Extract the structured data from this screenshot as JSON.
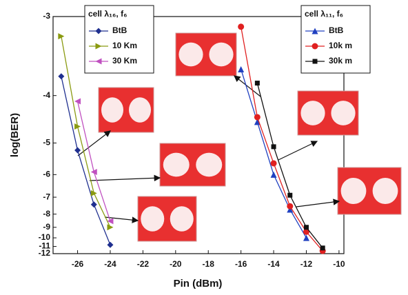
{
  "chart_data": {
    "type": "line",
    "xlabel": "Pin (dBm)",
    "ylabel": "log(BER)",
    "yscale": "reciprocal",
    "xlim": [
      -27.5,
      -9.7
    ],
    "xticks": [
      -26,
      -24,
      -22,
      -20,
      -18,
      -16,
      -14,
      -12,
      -10
    ],
    "ylim": [
      -3,
      -12
    ],
    "yticks": [
      -3,
      -4,
      -5,
      -6,
      -7,
      -8,
      -9,
      -10,
      -11,
      -12
    ],
    "legends": [
      {
        "title": "cell λ₁₆, f₆"
      },
      {
        "title": "cell λ₁₁, f₆"
      }
    ],
    "series": [
      {
        "name": "BtB",
        "color": "#1f2f8f",
        "marker": "diamond",
        "x": [
          -27,
          -26,
          -25,
          -24
        ],
        "values": [
          -3.7,
          -5.2,
          -7.4,
          -10.8
        ]
      },
      {
        "name": "10 Km",
        "color": "#8a9a10",
        "marker": "triangle-right",
        "x": [
          -27,
          -26,
          -25,
          -24
        ],
        "values": [
          -3.2,
          -4.6,
          -6.8,
          -9
        ]
      },
      {
        "name": "30 Km",
        "color": "#c050c0",
        "marker": "triangle-left",
        "x": [
          -26,
          -25,
          -24
        ],
        "values": [
          -4.1,
          -5.9,
          -8.5
        ]
      },
      {
        "name": "BtB",
        "color": "#2040c0",
        "marker": "triangle-up",
        "x": [
          -16,
          -15,
          -14,
          -13,
          -12
        ],
        "values": [
          -3.6,
          -4.5,
          -6,
          -7.7,
          -10
        ]
      },
      {
        "name": "10k m",
        "color": "#e02020",
        "marker": "circle",
        "x": [
          -16,
          -15,
          -14,
          -13,
          -12,
          -11
        ],
        "values": [
          -3.1,
          -4.4,
          -5.6,
          -7.5,
          -9.4,
          -11.6
        ]
      },
      {
        "name": "30k m",
        "color": "#111111",
        "marker": "square",
        "x": [
          -15,
          -14,
          -13,
          -12,
          -11
        ],
        "values": [
          -3.8,
          -5.1,
          -6.9,
          -9,
          -11.2
        ]
      }
    ]
  }
}
